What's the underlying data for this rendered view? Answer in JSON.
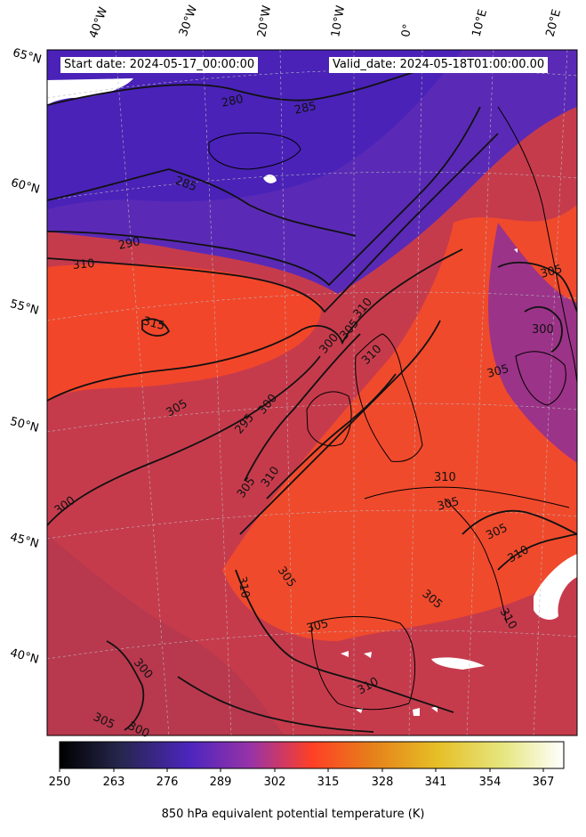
{
  "header": {
    "start_date": "Start date: 2024-05-17_00:00:00",
    "valid_date": "Valid_date: 2024-05-18T01:00:00.00"
  },
  "axes": {
    "lon_labels": [
      "40°W",
      "30°W",
      "20°W",
      "10°W",
      "0°",
      "10°E",
      "20°E"
    ],
    "lat_labels": [
      "65°N",
      "60°N",
      "55°N",
      "50°N",
      "45°N",
      "40°N"
    ]
  },
  "colorbar": {
    "ticks": [
      "250",
      "263",
      "276",
      "289",
      "302",
      "315",
      "328",
      "341",
      "354",
      "367"
    ],
    "label": "850 hPa equivalent potential temperature (K)",
    "range": [
      250,
      372
    ],
    "colormap": "CMRmap",
    "stops": [
      "#000000",
      "#26264d",
      "#4d26bf",
      "#9933a6",
      "#ff3f26",
      "#e6801a",
      "#e6bf26",
      "#e6e680",
      "#ffffff"
    ]
  },
  "contours": {
    "labels": [
      "280",
      "285",
      "285",
      "290",
      "310",
      "315",
      "305",
      "300",
      "295",
      "300",
      "305",
      "310",
      "305",
      "310",
      "310",
      "300",
      "305",
      "310",
      "305",
      "305",
      "310",
      "310",
      "310",
      "305",
      "305",
      "300",
      "305",
      "310",
      "305",
      "305",
      "300",
      "300"
    ]
  },
  "map": {
    "colors": {
      "cold": "#4a22b8",
      "mid": "#7a2ea8",
      "warm": "#c9384a",
      "hot": "#f24a2a",
      "land": "#d94232",
      "mask": "#ffffff"
    }
  }
}
